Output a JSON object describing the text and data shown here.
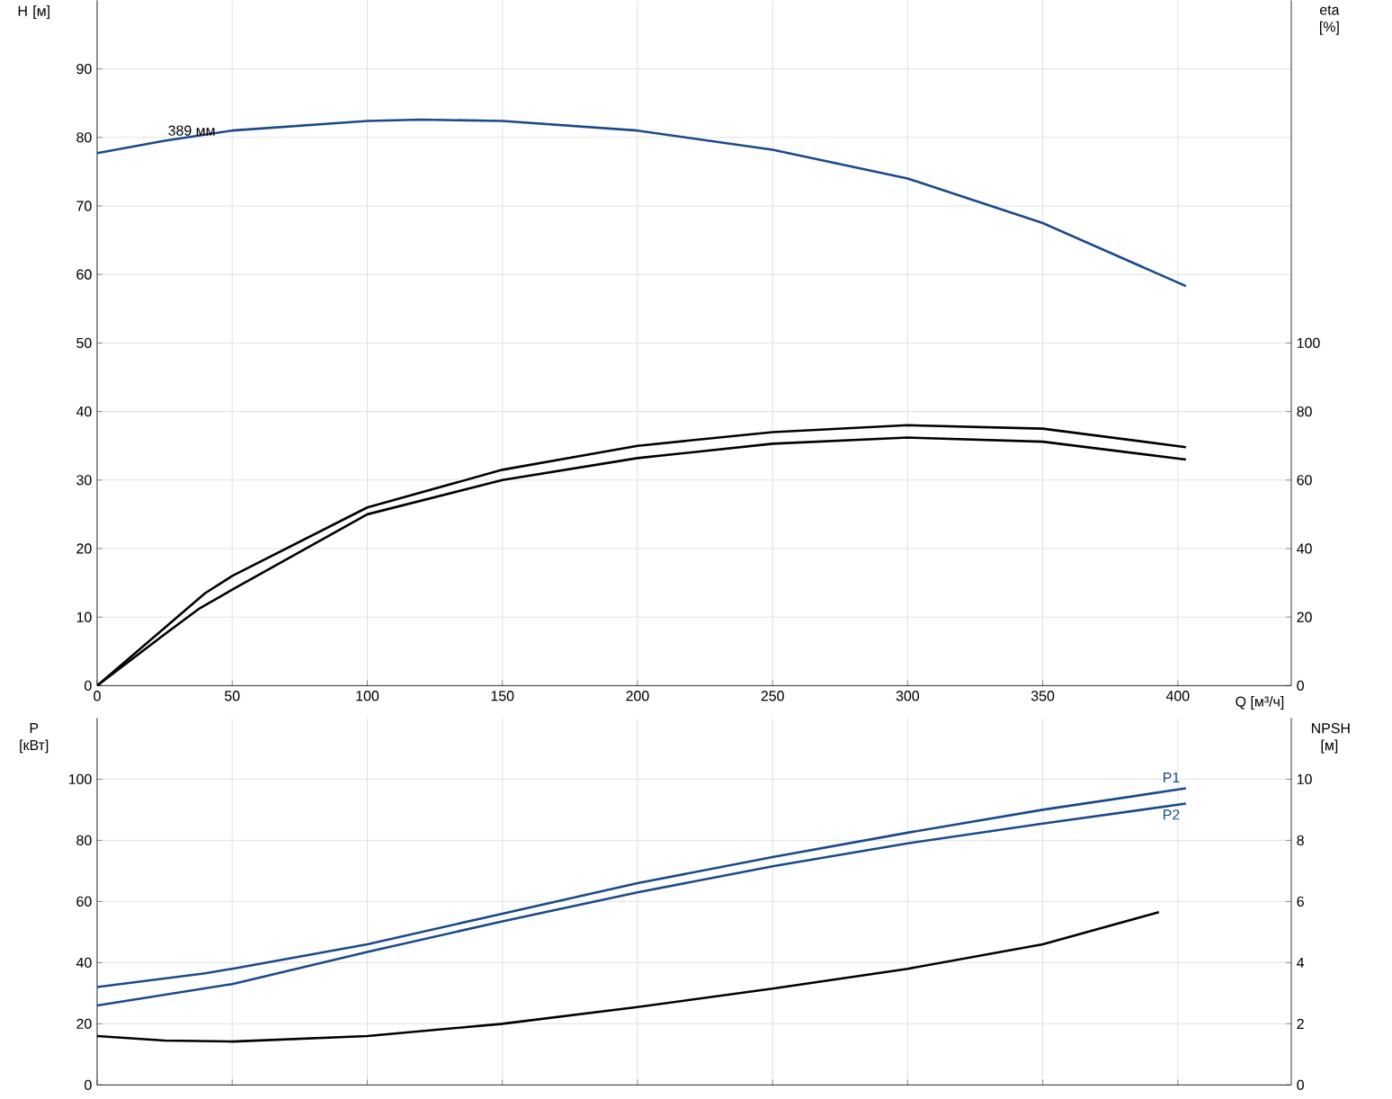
{
  "chart_data": [
    {
      "type": "line",
      "xlabel": "Q [м³/ч]",
      "ylabel": "H [м]",
      "y2label": "eta [%]",
      "xlim": [
        0,
        442
      ],
      "ylim": [
        0,
        100
      ],
      "y2lim": [
        0,
        200
      ],
      "xticks": [
        0,
        50,
        100,
        150,
        200,
        250,
        300,
        350,
        400
      ],
      "yticks": [
        0,
        10,
        20,
        30,
        40,
        50,
        60,
        70,
        80,
        90
      ],
      "y2ticks": [
        0,
        20,
        40,
        60,
        80,
        100
      ],
      "grid": true,
      "annotations": [
        {
          "text": "389 мм",
          "x": 35,
          "y": 81
        }
      ],
      "series": [
        {
          "color": "#1a4a8a",
          "x": [
            0,
            25,
            50,
            100,
            120,
            150,
            200,
            250,
            300,
            350,
            403
          ],
          "values": [
            77.7,
            79.5,
            81,
            82.4,
            82.6,
            82.4,
            81,
            78.2,
            74,
            67.5,
            58.3
          ]
        },
        {
          "color": "#000000",
          "axis": "y2",
          "x": [
            0,
            40,
            50,
            100,
            150,
            200,
            250,
            300,
            350,
            403
          ],
          "values": [
            0,
            27,
            32,
            52,
            63,
            70,
            74,
            76,
            75,
            69.6
          ]
        },
        {
          "color": "#000000",
          "axis": "y2",
          "x": [
            0,
            25,
            38,
            50,
            100,
            150,
            200,
            250,
            300,
            350,
            403
          ],
          "values": [
            0,
            15,
            22.6,
            28,
            50,
            60,
            66.4,
            70.6,
            72.4,
            71.2,
            66
          ]
        }
      ]
    },
    {
      "type": "line",
      "ylabel": "P [кВт]",
      "y2label": "NPSH [м]",
      "xlim": [
        0,
        442
      ],
      "ylim": [
        0,
        120
      ],
      "y2lim": [
        0,
        12
      ],
      "xticks": [
        0,
        50,
        100,
        150,
        200,
        250,
        300,
        350,
        400
      ],
      "yticks": [
        0,
        20,
        40,
        60,
        80,
        100
      ],
      "y2ticks": [
        0,
        2,
        4,
        6,
        8,
        10
      ],
      "grid": true,
      "tick_labels": "y",
      "series": [
        {
          "name": "P1",
          "color": "#1a4a8a",
          "x": [
            0,
            40,
            50,
            100,
            150,
            200,
            250,
            300,
            350,
            403
          ],
          "values": [
            32,
            36.5,
            38,
            46,
            56,
            66,
            74.5,
            82.5,
            90,
            97
          ]
        },
        {
          "name": "P2",
          "color": "#1a4a8a",
          "x": [
            0,
            50,
            100,
            150,
            200,
            250,
            300,
            350,
            403
          ],
          "values": [
            26,
            33,
            43.5,
            53.5,
            63,
            71.5,
            79,
            85.5,
            92
          ]
        },
        {
          "color": "#000000",
          "axis": "y2",
          "x": [
            0,
            25,
            50,
            100,
            150,
            200,
            250,
            300,
            350,
            393
          ],
          "values": [
            1.6,
            1.45,
            1.42,
            1.6,
            2.0,
            2.55,
            3.15,
            3.8,
            4.6,
            5.65
          ]
        }
      ]
    }
  ]
}
